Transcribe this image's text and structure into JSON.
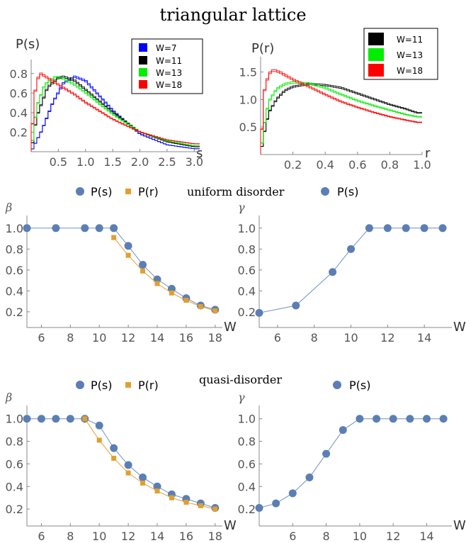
{
  "title": "triangular lattice",
  "top_left": {
    "ylabel": "P(s)",
    "xlabel": "s",
    "legend": [
      "W=7",
      "W=11",
      "W=13",
      "W=18"
    ]
  },
  "top_right": {
    "ylabel": "P(r)",
    "xlabel": "r",
    "legend": [
      "W=11",
      "W=13",
      "W=18"
    ]
  },
  "row2_legend": {
    "ps": "P(s)",
    "pr": "P(r)",
    "caption": "uniform disorder",
    "right_ps": "P(s)"
  },
  "row3_legend": {
    "ps": "P(s)",
    "pr": "P(r)",
    "caption": "quasi-disorder",
    "right_ps": "P(s)"
  },
  "colors": {
    "W7": "#0000ff",
    "W11": "#000000",
    "W13": "#00ee00",
    "W18": "#ff0000",
    "ps_marker": "#5b7fb4",
    "pr_marker": "#e0a030",
    "axis": "#888888",
    "tick_text": "#555555"
  },
  "chart_data": [
    {
      "id": "ps-distribution",
      "type": "line",
      "xlabel": "s",
      "ylabel": "P(s)",
      "xlim": [
        0,
        3.1
      ],
      "ylim": [
        0,
        0.9
      ],
      "xticks": [
        "0.5",
        "1.0",
        "1.5",
        "2.0",
        "2.5",
        "3.0"
      ],
      "yticks": [
        "0.2",
        "0.4",
        "0.6",
        "0.8"
      ],
      "legend_position": "top-right",
      "series": [
        {
          "name": "W=7",
          "color": "#0000ff",
          "peak_x": 0.8,
          "peak_y": 0.76,
          "x": [
            0,
            0.2,
            0.4,
            0.6,
            0.8,
            1.0,
            1.2,
            1.5,
            2.0,
            2.5,
            3.0
          ],
          "y": [
            0.0,
            0.22,
            0.5,
            0.7,
            0.76,
            0.72,
            0.6,
            0.42,
            0.18,
            0.07,
            0.03
          ]
        },
        {
          "name": "W=11",
          "color": "#000000",
          "peak_x": 0.6,
          "peak_y": 0.76,
          "x": [
            0,
            0.1,
            0.3,
            0.5,
            0.6,
            0.8,
            1.0,
            1.5,
            2.0,
            2.5,
            3.0
          ],
          "y": [
            0.0,
            0.35,
            0.65,
            0.75,
            0.76,
            0.72,
            0.63,
            0.4,
            0.2,
            0.1,
            0.05
          ]
        },
        {
          "name": "W=13",
          "color": "#00ee00",
          "peak_x": 0.45,
          "peak_y": 0.76,
          "x": [
            0,
            0.1,
            0.25,
            0.45,
            0.6,
            0.8,
            1.0,
            1.5,
            2.0,
            2.5,
            3.0
          ],
          "y": [
            0.0,
            0.45,
            0.68,
            0.76,
            0.74,
            0.68,
            0.6,
            0.38,
            0.2,
            0.11,
            0.06
          ]
        },
        {
          "name": "W=18",
          "color": "#ff0000",
          "peak_x": 0.15,
          "peak_y": 0.8,
          "x": [
            0,
            0.05,
            0.15,
            0.3,
            0.5,
            0.8,
            1.0,
            1.5,
            2.0,
            2.5,
            3.0
          ],
          "y": [
            0.0,
            0.55,
            0.8,
            0.75,
            0.68,
            0.58,
            0.5,
            0.33,
            0.2,
            0.12,
            0.08
          ]
        }
      ]
    },
    {
      "id": "pr-distribution",
      "type": "line",
      "xlabel": "r",
      "ylabel": "P(r)",
      "xlim": [
        0,
        1.0
      ],
      "ylim": [
        0,
        1.7
      ],
      "xticks": [
        "0.2",
        "0.4",
        "0.6",
        "0.8",
        "1.0"
      ],
      "yticks": [
        "0.5",
        "1.0",
        "1.5"
      ],
      "legend_position": "top-right",
      "series": [
        {
          "name": "W=11",
          "color": "#000000",
          "x": [
            0,
            0.02,
            0.05,
            0.1,
            0.15,
            0.2,
            0.3,
            0.4,
            0.5,
            0.6,
            0.7,
            0.8,
            0.9,
            0.97
          ],
          "y": [
            0.0,
            0.35,
            0.75,
            1.0,
            1.15,
            1.22,
            1.27,
            1.25,
            1.2,
            1.1,
            1.0,
            0.9,
            0.82,
            0.75
          ]
        },
        {
          "name": "W=13",
          "color": "#00ee00",
          "x": [
            0,
            0.02,
            0.05,
            0.1,
            0.15,
            0.2,
            0.3,
            0.4,
            0.5,
            0.6,
            0.7,
            0.8,
            0.9,
            0.97
          ],
          "y": [
            0.0,
            0.5,
            0.95,
            1.18,
            1.27,
            1.3,
            1.28,
            1.2,
            1.08,
            0.97,
            0.88,
            0.8,
            0.72,
            0.68
          ]
        },
        {
          "name": "W=18",
          "color": "#ff0000",
          "x": [
            0,
            0.02,
            0.05,
            0.08,
            0.12,
            0.2,
            0.3,
            0.4,
            0.5,
            0.6,
            0.7,
            0.8,
            0.9,
            0.97
          ],
          "y": [
            0.0,
            1.1,
            1.45,
            1.52,
            1.48,
            1.35,
            1.22,
            1.08,
            0.95,
            0.85,
            0.76,
            0.68,
            0.62,
            0.58
          ]
        }
      ]
    },
    {
      "id": "beta-uniform",
      "type": "line",
      "xlabel": "W",
      "ylabel": "β",
      "xlim": [
        5,
        18.5
      ],
      "ylim": [
        0.05,
        1.08
      ],
      "xticks": [
        "6",
        "8",
        "10",
        "12",
        "14",
        "16",
        "18"
      ],
      "yticks": [
        "0.2",
        "0.4",
        "0.6",
        "0.8",
        "1.0"
      ],
      "series": [
        {
          "name": "P(s)",
          "marker": "circle",
          "color": "#5b7fb4",
          "x": [
            5,
            7,
            9,
            10,
            11,
            12,
            13,
            14,
            15,
            16,
            17,
            18
          ],
          "y": [
            1.0,
            1.0,
            1.0,
            1.0,
            1.0,
            0.83,
            0.65,
            0.51,
            0.42,
            0.33,
            0.26,
            0.22
          ]
        },
        {
          "name": "P(r)",
          "marker": "square",
          "color": "#e0a030",
          "x": [
            11,
            12,
            13,
            14,
            15,
            16,
            17,
            18
          ],
          "y": [
            0.91,
            0.74,
            0.59,
            0.47,
            0.38,
            0.31,
            0.25,
            0.21
          ]
        }
      ]
    },
    {
      "id": "gamma-uniform",
      "type": "line",
      "xlabel": "W",
      "ylabel": "γ",
      "xlim": [
        5,
        15.5
      ],
      "ylim": [
        0.05,
        1.08
      ],
      "xticks": [
        "6",
        "8",
        "10",
        "12",
        "14"
      ],
      "yticks": [
        "0.2",
        "0.4",
        "0.6",
        "0.8",
        "1.0"
      ],
      "series": [
        {
          "name": "P(s)",
          "marker": "circle",
          "color": "#5b7fb4",
          "x": [
            5,
            7,
            9,
            10,
            11,
            12,
            13,
            14,
            15
          ],
          "y": [
            0.19,
            0.26,
            0.58,
            0.8,
            1.0,
            1.0,
            1.0,
            1.0,
            1.0
          ]
        }
      ]
    },
    {
      "id": "beta-quasi",
      "type": "line",
      "xlabel": "W",
      "ylabel": "β",
      "xlim": [
        5,
        18.5
      ],
      "ylim": [
        0.05,
        1.08
      ],
      "xticks": [
        "6",
        "8",
        "10",
        "12",
        "14",
        "16",
        "18"
      ],
      "yticks": [
        "0.2",
        "0.4",
        "0.6",
        "0.8",
        "1.0"
      ],
      "series": [
        {
          "name": "P(s)",
          "marker": "circle",
          "color": "#5b7fb4",
          "x": [
            5,
            6,
            7,
            8,
            9,
            10,
            11,
            12,
            13,
            14,
            15,
            16,
            17,
            18
          ],
          "y": [
            1.0,
            1.0,
            1.0,
            1.0,
            1.0,
            0.94,
            0.74,
            0.59,
            0.48,
            0.4,
            0.33,
            0.29,
            0.25,
            0.21
          ]
        },
        {
          "name": "P(r)",
          "marker": "square",
          "color": "#e0a030",
          "x": [
            9,
            10,
            11,
            12,
            13,
            14,
            15,
            16,
            17,
            18
          ],
          "y": [
            1.0,
            0.81,
            0.65,
            0.52,
            0.43,
            0.36,
            0.3,
            0.26,
            0.23,
            0.2
          ]
        }
      ]
    },
    {
      "id": "gamma-quasi",
      "type": "line",
      "xlabel": "W",
      "ylabel": "γ",
      "xlim": [
        4,
        15.5
      ],
      "ylim": [
        0.05,
        1.08
      ],
      "xticks": [
        "6",
        "8",
        "10",
        "12",
        "14"
      ],
      "yticks": [
        "0.2",
        "0.4",
        "0.6",
        "0.8",
        "1.0"
      ],
      "series": [
        {
          "name": "P(s)",
          "marker": "circle",
          "color": "#5b7fb4",
          "x": [
            4,
            5,
            6,
            7,
            8,
            9,
            10,
            11,
            12,
            13,
            14,
            15
          ],
          "y": [
            0.21,
            0.25,
            0.34,
            0.48,
            0.69,
            0.9,
            1.0,
            1.0,
            1.0,
            1.0,
            1.0,
            1.0
          ]
        }
      ]
    }
  ]
}
